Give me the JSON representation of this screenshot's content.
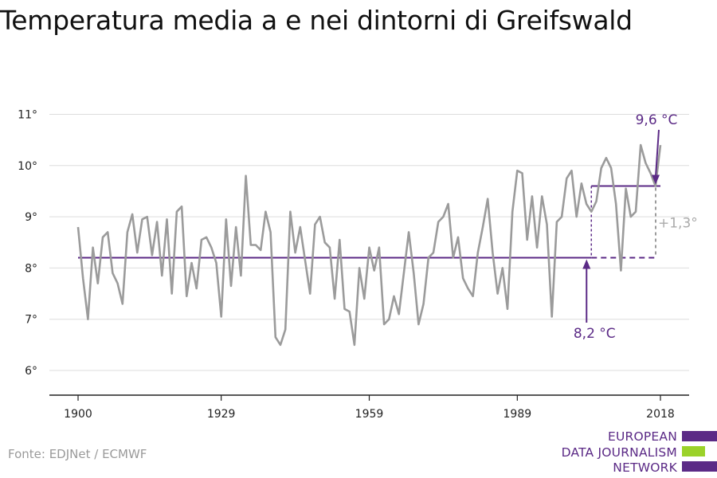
{
  "title": "Temperatura media a e nei dintorni di Greifswald",
  "source": "Fonte: EDJNet / ECMWF",
  "logo": {
    "line1": "EUROPEAN",
    "line2": "DATA JOURNALISM",
    "line3": "NETWORK",
    "colors": {
      "purple": "#5b2a86",
      "green": "#9bd22a"
    }
  },
  "colors": {
    "series": "#9b9b9b",
    "accent": "#5b2a86",
    "grid": "#dddddd",
    "axis": "#222222"
  },
  "chart_data": {
    "type": "line",
    "title": "Temperatura media a e nei dintorni di Greifswald",
    "xlabel": "",
    "ylabel": "",
    "xlim": [
      1900,
      2018
    ],
    "ylim": [
      5.5,
      11.3
    ],
    "x_ticks": [
      1900,
      1929,
      1959,
      1989,
      2018
    ],
    "x_tick_labels": [
      "1900",
      "1929",
      "1959",
      "1989",
      "2018"
    ],
    "y_ticks": [
      6,
      7,
      8,
      9,
      10,
      11
    ],
    "y_tick_labels": [
      "6°",
      "7°",
      "8°",
      "9°",
      "10°",
      "11°"
    ],
    "grid": "horizontal",
    "series": [
      {
        "name": "",
        "x": [
          1900,
          1901,
          1902,
          1903,
          1904,
          1905,
          1906,
          1907,
          1908,
          1909,
          1910,
          1911,
          1912,
          1913,
          1914,
          1915,
          1916,
          1917,
          1918,
          1919,
          1920,
          1921,
          1922,
          1923,
          1924,
          1925,
          1926,
          1927,
          1928,
          1929,
          1930,
          1931,
          1932,
          1933,
          1934,
          1935,
          1936,
          1937,
          1938,
          1939,
          1940,
          1941,
          1942,
          1943,
          1944,
          1945,
          1946,
          1947,
          1948,
          1949,
          1950,
          1951,
          1952,
          1953,
          1954,
          1955,
          1956,
          1957,
          1958,
          1959,
          1960,
          1961,
          1962,
          1963,
          1964,
          1965,
          1966,
          1967,
          1968,
          1969,
          1970,
          1971,
          1972,
          1973,
          1974,
          1975,
          1976,
          1977,
          1978,
          1979,
          1980,
          1981,
          1982,
          1983,
          1984,
          1985,
          1986,
          1987,
          1988,
          1989,
          1990,
          1991,
          1992,
          1993,
          1994,
          1995,
          1996,
          1997,
          1998,
          1999,
          2000,
          2001,
          2002,
          2003,
          2004,
          2005,
          2006,
          2007,
          2008,
          2009,
          2010,
          2011,
          2012,
          2013,
          2014,
          2015,
          2016,
          2017,
          2018
        ],
        "y": [
          8.8,
          7.8,
          7.0,
          8.4,
          7.7,
          8.6,
          8.7,
          7.9,
          7.7,
          7.3,
          8.7,
          9.05,
          8.3,
          8.95,
          9.0,
          8.25,
          8.9,
          7.85,
          8.95,
          7.5,
          9.1,
          9.2,
          7.45,
          8.1,
          7.6,
          8.55,
          8.6,
          8.4,
          8.1,
          7.05,
          8.95,
          7.65,
          8.8,
          7.85,
          9.8,
          8.45,
          8.45,
          8.35,
          9.1,
          8.7,
          6.65,
          6.5,
          6.8,
          9.1,
          8.3,
          8.8,
          8.15,
          7.5,
          8.85,
          9.0,
          8.5,
          8.4,
          7.4,
          8.55,
          7.2,
          7.15,
          6.5,
          8.0,
          7.4,
          8.4,
          7.95,
          8.4,
          6.9,
          7.0,
          7.45,
          7.1,
          7.9,
          8.7,
          7.9,
          6.9,
          7.3,
          8.2,
          8.3,
          8.9,
          9.0,
          9.25,
          8.2,
          8.6,
          7.8,
          7.6,
          7.45,
          8.3,
          8.8,
          9.35,
          8.3,
          7.5,
          8.0,
          7.2,
          9.1,
          9.9,
          9.85,
          8.55,
          9.4,
          8.4,
          9.4,
          8.85,
          7.05,
          8.9,
          9.0,
          9.75,
          9.9,
          9.0,
          9.65,
          9.25,
          9.1,
          9.3,
          9.95,
          10.15,
          9.95,
          9.25,
          7.95,
          9.55,
          9.0,
          9.1,
          10.4,
          10.05,
          9.85,
          9.6,
          10.4
        ]
      }
    ],
    "annotations": {
      "baseline": {
        "value": 8.2,
        "x_start": 1900,
        "x_end": 2004,
        "label": "8,2 °C"
      },
      "recent": {
        "value": 9.6,
        "x_start": 2004,
        "x_end": 2018,
        "label": "9,6 °C"
      },
      "difference_label": "+1,3°"
    }
  }
}
